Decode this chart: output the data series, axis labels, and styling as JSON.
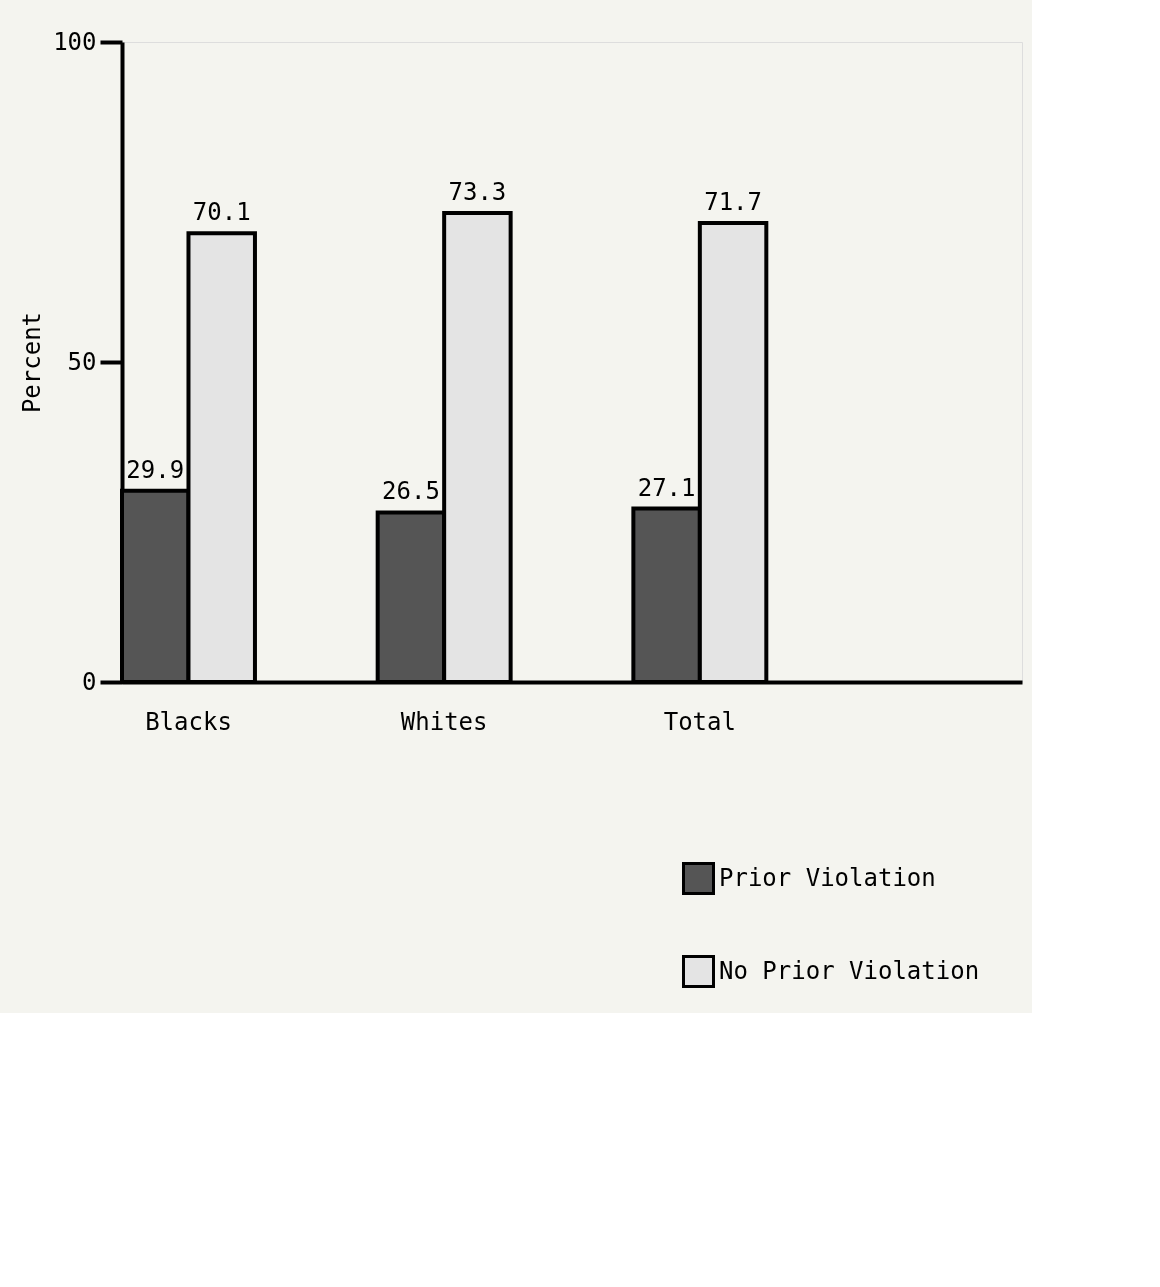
{
  "chart_data": {
    "type": "bar",
    "ylabel": "Percent",
    "categories": [
      "Blacks",
      "Whites",
      "Total"
    ],
    "series": [
      {
        "name": "Prior Violation",
        "color": "#555555",
        "values": [
          29.9,
          26.5,
          27.1
        ]
      },
      {
        "name": "No Prior Violation",
        "color": "#e4e4e4",
        "values": [
          70.1,
          73.3,
          71.7
        ]
      }
    ],
    "ylim": [
      0,
      100
    ],
    "yticks": [
      0,
      50,
      100
    ],
    "grid": false,
    "legend": "bottom right",
    "data_labels": true
  }
}
